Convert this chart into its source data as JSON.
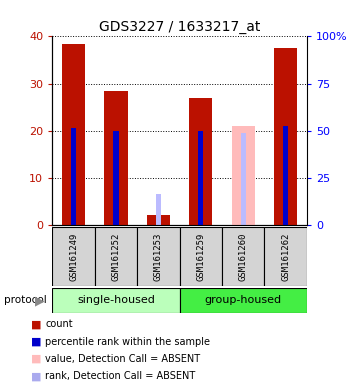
{
  "title": "GDS3227 / 1633217_at",
  "samples": [
    "GSM161249",
    "GSM161252",
    "GSM161253",
    "GSM161259",
    "GSM161260",
    "GSM161262"
  ],
  "count_values": [
    38.5,
    28.5,
    2.0,
    27.0,
    0.0,
    37.5
  ],
  "rank_values": [
    20.5,
    20.0,
    0.0,
    20.0,
    0.0,
    21.0
  ],
  "absent_value_bars": [
    0.0,
    0.0,
    0.0,
    0.0,
    21.0,
    0.0
  ],
  "absent_rank_bars": [
    0.0,
    0.0,
    6.5,
    0.0,
    19.5,
    0.0
  ],
  "count_color": "#bb1100",
  "rank_color": "#0000cc",
  "absent_value_color": "#ffbbbb",
  "absent_rank_color": "#bbbbff",
  "ylim_left": [
    0,
    40
  ],
  "ylim_right": [
    0,
    100
  ],
  "yticks_left": [
    0,
    10,
    20,
    30,
    40
  ],
  "yticks_right": [
    0,
    25,
    50,
    75,
    100
  ],
  "ytick_labels_right": [
    "0",
    "25",
    "50",
    "75",
    "100%"
  ],
  "protocol_label": "protocol",
  "single_label": "single-housed",
  "group_label": "group-housed",
  "group_color_single": "#bbffbb",
  "group_color_group": "#44ee44",
  "sample_box_color": "#d4d4d4",
  "legend_items": [
    {
      "label": "count",
      "color": "#bb1100"
    },
    {
      "label": "percentile rank within the sample",
      "color": "#0000cc"
    },
    {
      "label": "value, Detection Call = ABSENT",
      "color": "#ffbbbb"
    },
    {
      "label": "rank, Detection Call = ABSENT",
      "color": "#aaaaee"
    }
  ]
}
